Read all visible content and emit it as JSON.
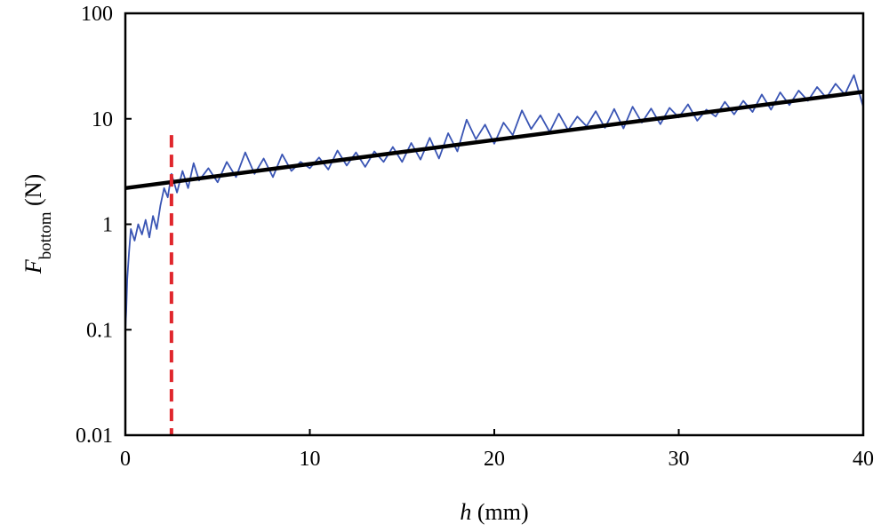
{
  "chart_data": {
    "type": "line",
    "title": "",
    "xlabel": {
      "italic": "h",
      "rest": " (mm)"
    },
    "ylabel": {
      "main": "F",
      "sub": "bottom",
      "rest": " (N)"
    },
    "xlim": [
      0,
      40
    ],
    "ylim": [
      0.01,
      100
    ],
    "y_scale": "log",
    "grid": false,
    "legend": "none",
    "x_ticks": [
      0,
      10,
      20,
      30,
      40
    ],
    "x_tick_labels": [
      "0",
      "10",
      "20",
      "30",
      "40"
    ],
    "y_ticks": [
      0.01,
      0.1,
      1,
      10,
      100
    ],
    "y_tick_labels": [
      "0.01",
      "0.1",
      "1",
      "10",
      "100"
    ],
    "series": [
      {
        "style": "measured",
        "color": "#3a55b4",
        "x": [
          0.0,
          0.05,
          0.1,
          0.2,
          0.3,
          0.5,
          0.7,
          0.9,
          1.1,
          1.3,
          1.5,
          1.7,
          1.9,
          2.1,
          2.3,
          2.5,
          2.8,
          3.1,
          3.4,
          3.7,
          4.0,
          4.5,
          5.0,
          5.5,
          6.0,
          6.5,
          7.0,
          7.5,
          8.0,
          8.5,
          9.0,
          9.5,
          10.0,
          10.5,
          11.0,
          11.5,
          12.0,
          12.5,
          13.0,
          13.5,
          14.0,
          14.5,
          15.0,
          15.5,
          16.0,
          16.5,
          17.0,
          17.5,
          18.0,
          18.5,
          19.0,
          19.5,
          20.0,
          20.5,
          21.0,
          21.5,
          22.0,
          22.5,
          23.0,
          23.5,
          24.0,
          24.5,
          25.0,
          25.5,
          26.0,
          26.5,
          27.0,
          27.5,
          28.0,
          28.5,
          29.0,
          29.5,
          30.0,
          30.5,
          31.0,
          31.5,
          32.0,
          32.5,
          33.0,
          33.5,
          34.0,
          34.5,
          35.0,
          35.5,
          36.0,
          36.5,
          37.0,
          37.5,
          38.0,
          38.5,
          39.0,
          39.5,
          40.0
        ],
        "y": [
          0.1,
          0.15,
          0.3,
          0.55,
          0.9,
          0.7,
          1.0,
          0.8,
          1.1,
          0.75,
          1.2,
          0.9,
          1.5,
          2.2,
          1.8,
          3.0,
          2.0,
          3.2,
          2.2,
          3.8,
          2.6,
          3.4,
          2.5,
          3.9,
          2.8,
          4.8,
          3.0,
          4.2,
          2.8,
          4.6,
          3.2,
          3.9,
          3.4,
          4.3,
          3.3,
          5.0,
          3.6,
          4.8,
          3.5,
          4.9,
          3.9,
          5.4,
          3.9,
          5.9,
          4.1,
          6.6,
          4.2,
          7.3,
          4.9,
          9.8,
          6.4,
          8.8,
          5.8,
          9.2,
          7.0,
          12.0,
          8.0,
          10.8,
          7.5,
          11.2,
          7.8,
          10.5,
          8.5,
          11.8,
          8.2,
          12.4,
          8.1,
          13.0,
          9.2,
          12.5,
          8.9,
          12.7,
          10.3,
          13.7,
          9.6,
          12.2,
          10.5,
          14.5,
          11.0,
          14.8,
          11.6,
          17.0,
          12.2,
          17.8,
          13.5,
          18.5,
          14.8,
          20.0,
          15.8,
          21.5,
          17.0,
          26.0,
          13.0
        ]
      },
      {
        "style": "fit",
        "color": "#000000",
        "x": [
          0,
          40
        ],
        "y": [
          2.2,
          18
        ]
      }
    ],
    "markers": [
      {
        "style": "vertical-dashed",
        "color": "#e0262c",
        "x": 2.5,
        "y_top": 7
      }
    ]
  }
}
